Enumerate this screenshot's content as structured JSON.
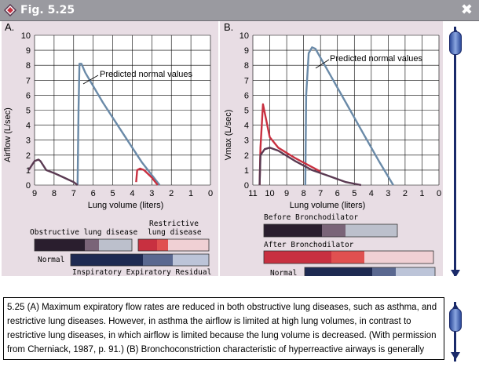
{
  "window": {
    "title": "Fig. 5.25",
    "close_label": "✖"
  },
  "panel_a": {
    "label": "A.",
    "ylabel": "Airflow (L/sec)",
    "xlabel": "Lung volume (liters)",
    "yticks": [
      "0",
      "1",
      "2",
      "3",
      "4",
      "5",
      "6",
      "7",
      "8",
      "9",
      "10"
    ],
    "xticks": [
      "9",
      "8",
      "7",
      "6",
      "5",
      "4",
      "3",
      "2",
      "1",
      "0"
    ],
    "annotation": "Predicted normal values",
    "legend": {
      "obstructive": "Obstructive lung disease",
      "restrictive_1": "Restrictive",
      "restrictive_2": "lung disease",
      "normal": "Normal",
      "bottom": "Inspiratory Expiratory Residual"
    }
  },
  "panel_b": {
    "label": "B.",
    "ylabel": "Vmax (L/sec)",
    "xlabel": "Lung volume (liters)",
    "yticks": [
      "0",
      "1",
      "2",
      "3",
      "4",
      "5",
      "6",
      "7",
      "8",
      "9",
      "10"
    ],
    "xticks": [
      "11",
      "10",
      "9",
      "8",
      "7",
      "6",
      "5",
      "4",
      "3",
      "2",
      "1",
      "0"
    ],
    "annotation": "Predicted normal values",
    "legend": {
      "before": "Before Bronchodilator",
      "after": "After Bronchodilator",
      "normal": "Normal"
    }
  },
  "colors": {
    "normal_curve": "#6a8aa8",
    "obstructive_curve": "#5a3a52",
    "restrictive_curve": "#c83040",
    "panel_bg": "#e8dde4"
  },
  "chart_data": [
    {
      "type": "line",
      "title": "A.",
      "xlabel": "Lung volume (liters)",
      "ylabel": "Airflow (L/sec)",
      "xlim": [
        9,
        0
      ],
      "ylim": [
        0,
        10
      ],
      "series": [
        {
          "name": "Predicted normal values",
          "x": [
            6.8,
            6.75,
            6.7,
            6.6,
            6.4,
            5.5,
            4.5,
            3.5,
            2.6
          ],
          "y": [
            0,
            5,
            8.1,
            8.1,
            7.5,
            5.5,
            3.5,
            1.5,
            0
          ]
        },
        {
          "x": [
            9.3,
            9.0,
            8.8,
            8.7,
            8.4,
            8.0,
            7.5,
            7.0,
            6.8
          ],
          "y": [
            1.0,
            1.6,
            1.7,
            1.6,
            1.0,
            0.8,
            0.5,
            0.2,
            0
          ]
        },
        {
          "x": [
            3.8,
            3.75,
            3.6,
            3.4,
            3.0,
            2.7
          ],
          "y": [
            0.2,
            1.0,
            1.1,
            1.0,
            0.5,
            0
          ]
        }
      ]
    },
    {
      "type": "line",
      "title": "B.",
      "xlabel": "Lung volume (liters)",
      "ylabel": "Vmax (L/sec)",
      "xlim": [
        11,
        0
      ],
      "ylim": [
        0,
        10
      ],
      "series": [
        {
          "name": "Predicted normal values",
          "x": [
            7.9,
            7.85,
            7.7,
            7.5,
            7.3,
            6.5,
            5.5,
            4.5,
            3.5,
            2.7
          ],
          "y": [
            0,
            6,
            8.8,
            9.2,
            9.1,
            7.5,
            5.5,
            3.5,
            1.5,
            0
          ]
        },
        {
          "x": [
            10.6,
            10.55,
            10.4,
            10.0,
            9.5,
            8.5,
            7.5,
            7.0
          ],
          "y": [
            0,
            2.5,
            5.4,
            3.2,
            2.5,
            1.8,
            1.2,
            0.9
          ]
        },
        {
          "x": [
            10.6,
            10.55,
            10.3,
            10.0,
            9.5,
            8.5,
            7.5,
            6.5,
            5.5,
            4.6
          ],
          "y": [
            0,
            2.0,
            2.4,
            2.5,
            2.3,
            1.6,
            1.0,
            0.6,
            0.2,
            0
          ]
        }
      ]
    }
  ],
  "caption": "5.25 (A) Maximum expiratory flow rates are reduced in both obstructive lung diseases, such as asthma, and restrictive lung diseases. However, in asthma the airflow is limited at high lung volumes, in contrast to restrictive lung diseases, in which airflow is limited because the lung volume is decreased. (With permission from Cherniack, 1987, p. 91.) (B) Bronchoconstriction characteristic of hyperreactive airways is generally reversible. Indices of expiratory airflow in asthmatic patients thus"
}
